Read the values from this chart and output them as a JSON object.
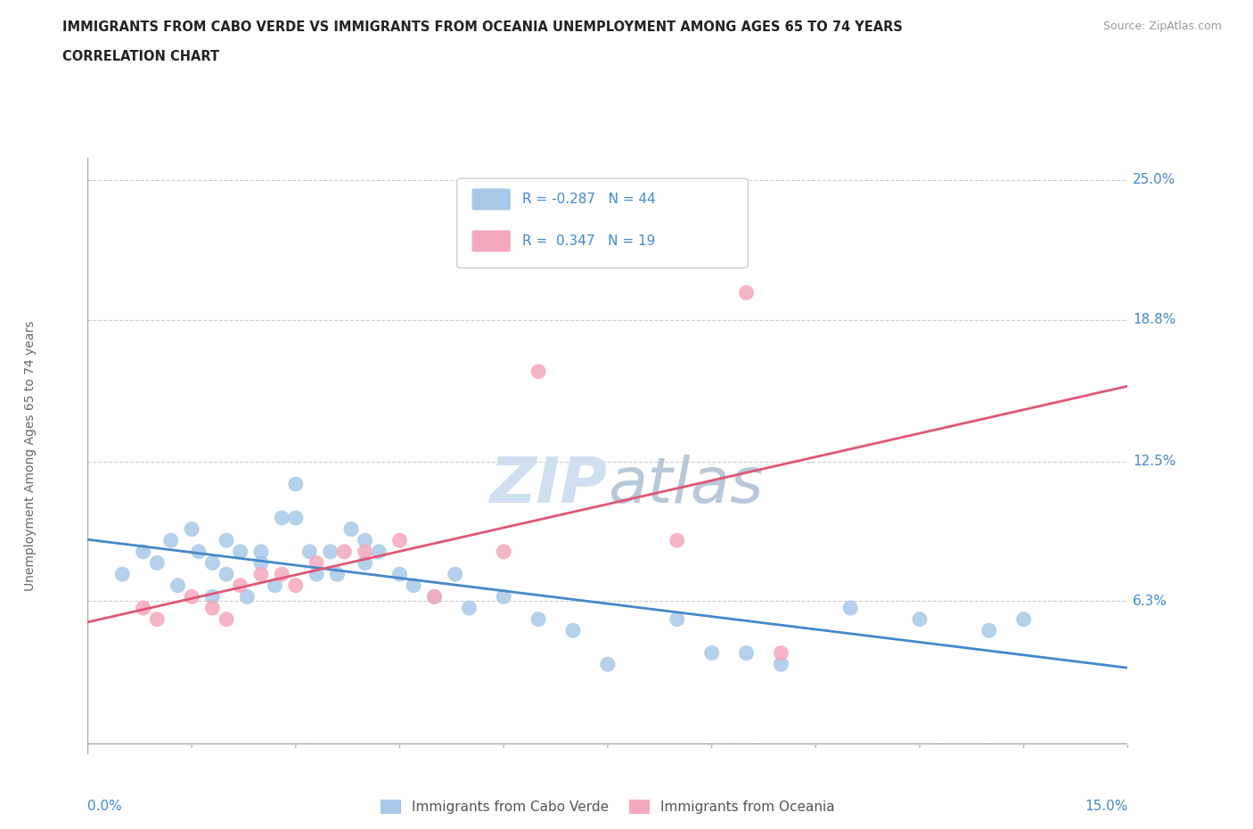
{
  "title_line1": "IMMIGRANTS FROM CABO VERDE VS IMMIGRANTS FROM OCEANIA UNEMPLOYMENT AMONG AGES 65 TO 74 YEARS",
  "title_line2": "CORRELATION CHART",
  "source": "Source: ZipAtlas.com",
  "ylabel": "Unemployment Among Ages 65 to 74 years",
  "xmin": 0.0,
  "xmax": 0.15,
  "ymin": 0.0,
  "ymax": 0.25,
  "r_cabo_verde": -0.287,
  "n_cabo_verde": 44,
  "r_oceania": 0.347,
  "n_oceania": 19,
  "color_cabo_verde": "#a8c8e8",
  "color_oceania": "#f4a8be",
  "line_color_cabo_verde": "#4488cc",
  "line_color_oceania": "#e05575",
  "tick_color": "#4488cc",
  "watermark_color": "#d0dff0",
  "cabo_verde_x": [
    0.005,
    0.008,
    0.01,
    0.012,
    0.013,
    0.015,
    0.016,
    0.018,
    0.018,
    0.02,
    0.02,
    0.022,
    0.023,
    0.025,
    0.025,
    0.027,
    0.028,
    0.03,
    0.03,
    0.032,
    0.033,
    0.035,
    0.036,
    0.038,
    0.04,
    0.04,
    0.042,
    0.045,
    0.047,
    0.05,
    0.053,
    0.055,
    0.06,
    0.065,
    0.07,
    0.075,
    0.085,
    0.09,
    0.095,
    0.1,
    0.11,
    0.12,
    0.13,
    0.135
  ],
  "cabo_verde_y": [
    0.075,
    0.085,
    0.08,
    0.09,
    0.07,
    0.095,
    0.085,
    0.08,
    0.065,
    0.075,
    0.09,
    0.085,
    0.065,
    0.085,
    0.08,
    0.07,
    0.1,
    0.1,
    0.115,
    0.085,
    0.075,
    0.085,
    0.075,
    0.095,
    0.09,
    0.08,
    0.085,
    0.075,
    0.07,
    0.065,
    0.075,
    0.06,
    0.065,
    0.055,
    0.05,
    0.035,
    0.055,
    0.04,
    0.04,
    0.035,
    0.06,
    0.055,
    0.05,
    0.055
  ],
  "oceania_x": [
    0.008,
    0.01,
    0.015,
    0.018,
    0.02,
    0.022,
    0.025,
    0.028,
    0.03,
    0.033,
    0.037,
    0.04,
    0.045,
    0.05,
    0.06,
    0.065,
    0.085,
    0.095,
    0.1
  ],
  "oceania_y": [
    0.06,
    0.055,
    0.065,
    0.06,
    0.055,
    0.07,
    0.075,
    0.075,
    0.07,
    0.08,
    0.085,
    0.085,
    0.09,
    0.065,
    0.085,
    0.165,
    0.09,
    0.2,
    0.04
  ]
}
